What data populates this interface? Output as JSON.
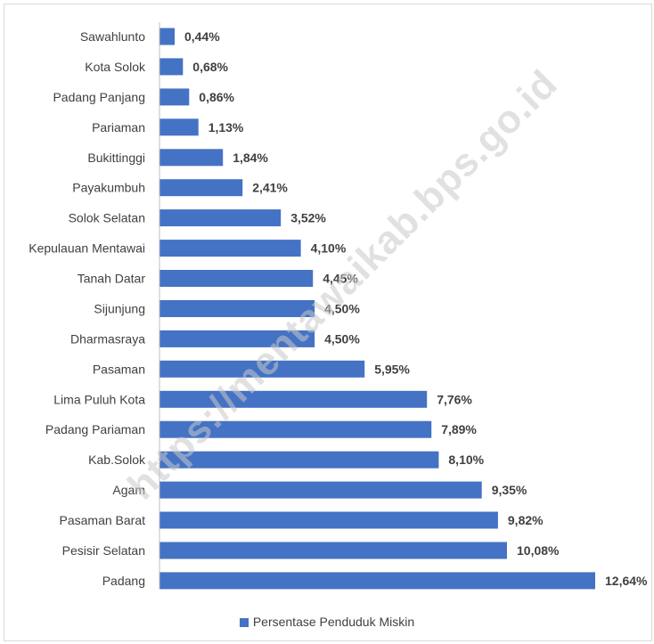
{
  "chart_data": {
    "type": "bar",
    "orientation": "horizontal",
    "categories": [
      "Sawahlunto",
      "Kota Solok",
      "Padang Panjang",
      "Pariaman",
      "Bukittinggi",
      "Payakumbuh",
      "Solok Selatan",
      "Kepulauan Mentawai",
      "Tanah Datar",
      "Sijunjung",
      "Dharmasraya",
      "Pasaman",
      "Lima Puluh Kota",
      "Padang Pariaman",
      "Kab.Solok",
      "Agam",
      "Pasaman Barat",
      "Pesisir Selatan",
      "Padang"
    ],
    "values": [
      0.44,
      0.68,
      0.86,
      1.13,
      1.84,
      2.41,
      3.52,
      4.1,
      4.45,
      4.5,
      4.5,
      5.95,
      7.76,
      7.89,
      8.1,
      9.35,
      9.82,
      10.08,
      12.64
    ],
    "value_labels": [
      "0,44%",
      "0,68%",
      "0,86%",
      "1,13%",
      "1,84%",
      "2,41%",
      "3,52%",
      "4,10%",
      "4,45%",
      "4,50%",
      "4,50%",
      "5,95%",
      "7,76%",
      "7,89%",
      "8,10%",
      "9,35%",
      "9,82%",
      "10,08%",
      "12,64%"
    ],
    "series": [
      {
        "name": "Persentase Penduduk Miskin",
        "color": "#4472c4"
      }
    ],
    "legend_position": "bottom",
    "xlim": [
      0,
      12.64
    ],
    "grid": false,
    "watermark": "https://mentawaikab.bps.go.id"
  }
}
